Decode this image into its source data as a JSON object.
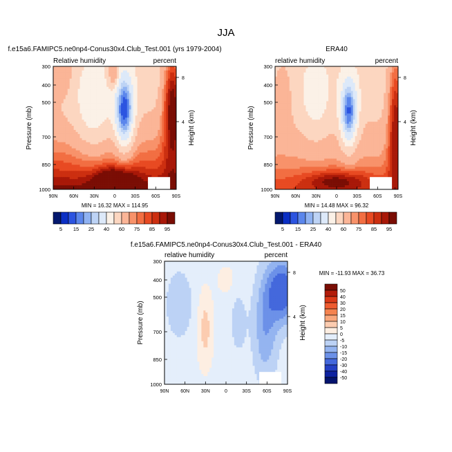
{
  "figure": {
    "title": "JJA"
  },
  "chart_data": [
    {
      "type": "heatmap",
      "title": "f.e15a6.FAMIPC5.ne0np4-Conus30x4.Club_Test.001 (yrs 1979-2004)",
      "left_string": "Relative humidity",
      "right_string": "percent",
      "ylabel": "Pressure (mb)",
      "ylabel_right": "Height (km)",
      "yticks": [
        "300",
        "400",
        "500",
        "700",
        "850",
        "1000"
      ],
      "yticks_right": [
        "8",
        "4"
      ],
      "xticks": [
        "90N",
        "60N",
        "30N",
        "0",
        "30S",
        "60S",
        "90S"
      ],
      "ylim": [
        1000,
        300
      ],
      "xlim": [
        "90N",
        "90S"
      ],
      "stats": "MIN =  16.32  MAX = 114.95",
      "min": 16.32,
      "max": 114.95,
      "colorbar": {
        "levels": [
          5,
          10,
          15,
          20,
          25,
          30,
          40,
          50,
          60,
          70,
          75,
          80,
          85,
          90,
          95
        ],
        "labels": [
          "5",
          "15",
          "25",
          "40",
          "60",
          "75",
          "85",
          "95"
        ],
        "colors": [
          "#04186e",
          "#0b2fc4",
          "#2c54e0",
          "#5b86ec",
          "#8fb2f2",
          "#bdd3f5",
          "#dde9f9",
          "#fbf1e7",
          "#fcd6c0",
          "#fbb597",
          "#f8926a",
          "#f26e42",
          "#e84a22",
          "#cc2f10",
          "#a81808",
          "#7a0d04"
        ]
      }
    },
    {
      "type": "heatmap",
      "title": "ERA40",
      "left_string": "relative humidity",
      "right_string": "percent",
      "ylabel": "Pressure (mb)",
      "ylabel_right": "Height (km)",
      "yticks": [
        "300",
        "400",
        "500",
        "700",
        "850",
        "1000"
      ],
      "yticks_right": [
        "8",
        "4"
      ],
      "xticks": [
        "90N",
        "60N",
        "30N",
        "0",
        "30S",
        "60S",
        "90S"
      ],
      "ylim": [
        1000,
        300
      ],
      "xlim": [
        "90N",
        "90S"
      ],
      "stats": "MIN =  14.48  MAX =  96.32",
      "min": 14.48,
      "max": 96.32,
      "colorbar": {
        "levels": [
          5,
          10,
          15,
          20,
          25,
          30,
          40,
          50,
          60,
          70,
          75,
          80,
          85,
          90,
          95
        ],
        "labels": [
          "5",
          "15",
          "25",
          "40",
          "60",
          "75",
          "85",
          "95"
        ],
        "colors": [
          "#04186e",
          "#0b2fc4",
          "#2c54e0",
          "#5b86ec",
          "#8fb2f2",
          "#bdd3f5",
          "#dde9f9",
          "#fbf1e7",
          "#fcd6c0",
          "#fbb597",
          "#f8926a",
          "#f26e42",
          "#e84a22",
          "#cc2f10",
          "#a81808",
          "#7a0d04"
        ]
      }
    },
    {
      "type": "heatmap",
      "title": "f.e15a6.FAMIPC5.ne0np4-Conus30x4.Club_Test.001 - ERA40",
      "left_string": "relative humidity",
      "right_string": "percent",
      "ylabel": "Pressure (mb)",
      "ylabel_right": "Height (km)",
      "yticks": [
        "300",
        "400",
        "500",
        "700",
        "850",
        "1000"
      ],
      "yticks_right": [
        "8",
        "4"
      ],
      "xticks": [
        "90N",
        "60N",
        "30N",
        "0",
        "30S",
        "60S",
        "90S"
      ],
      "ylim": [
        1000,
        300
      ],
      "xlim": [
        "90N",
        "90S"
      ],
      "stats": "MIN = -11.93  MAX =  36.73",
      "min": -11.93,
      "max": 36.73,
      "colorbar": {
        "levels": [
          -50,
          -40,
          -30,
          -20,
          -15,
          -10,
          -5,
          0,
          5,
          10,
          15,
          20,
          30,
          40,
          50
        ],
        "labels": [
          "50",
          "40",
          "30",
          "20",
          "15",
          "10",
          "5",
          "0",
          "-5",
          "-10",
          "-15",
          "-20",
          "-30",
          "-40",
          "-50"
        ],
        "colors": [
          "#7a0d04",
          "#b21c0a",
          "#db3a18",
          "#ef5c30",
          "#f5834f",
          "#f9a77c",
          "#fcccb0",
          "#fdeee2",
          "#e4eefb",
          "#bcd2f5",
          "#94b4f0",
          "#6c91e8",
          "#4468dc",
          "#2440c4",
          "#0e22a0",
          "#04146e"
        ]
      }
    }
  ]
}
